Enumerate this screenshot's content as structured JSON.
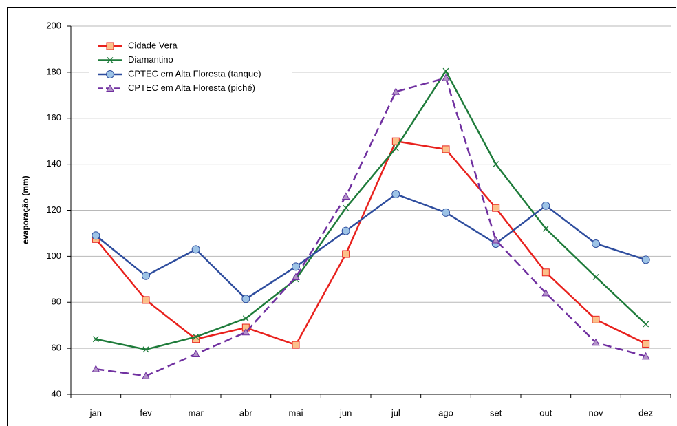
{
  "chart_data": {
    "type": "line",
    "y_label": "evaporação (mm)",
    "categories": [
      "jan",
      "fev",
      "mar",
      "abr",
      "mai",
      "jun",
      "jul",
      "ago",
      "set",
      "out",
      "nov",
      "dez"
    ],
    "series": [
      {
        "name": "Cidade Vera",
        "color": "#e8211d",
        "marker": "square",
        "dash": false,
        "values": [
          107.5,
          81,
          64,
          69,
          61.5,
          101,
          150,
          146.5,
          121,
          93,
          72.5,
          62
        ]
      },
      {
        "name": "Diamantino",
        "color": "#1e7b3a",
        "marker": "x",
        "dash": false,
        "values": [
          64,
          59.5,
          65,
          73,
          90,
          121,
          147,
          180.5,
          140,
          112,
          91,
          70.5
        ]
      },
      {
        "name": "CPTEC em Alta Floresta (tanque)",
        "color": "#2e4d9e",
        "marker": "circle",
        "dash": false,
        "values": [
          109,
          91.5,
          103,
          81.5,
          95.5,
          111,
          127,
          119,
          105.5,
          122,
          105.5,
          98.5
        ]
      },
      {
        "name": "CPTEC em Alta Floresta (piché)",
        "color": "#7030a0",
        "marker": "triangle",
        "dash": true,
        "values": [
          51,
          48,
          57.5,
          67,
          91,
          126,
          171.5,
          177.5,
          107,
          84,
          62.5,
          56.5
        ]
      }
    ],
    "ylim": [
      40,
      200
    ],
    "yticks": [
      40,
      60,
      80,
      100,
      120,
      140,
      160,
      180,
      200
    ],
    "grid": true
  }
}
